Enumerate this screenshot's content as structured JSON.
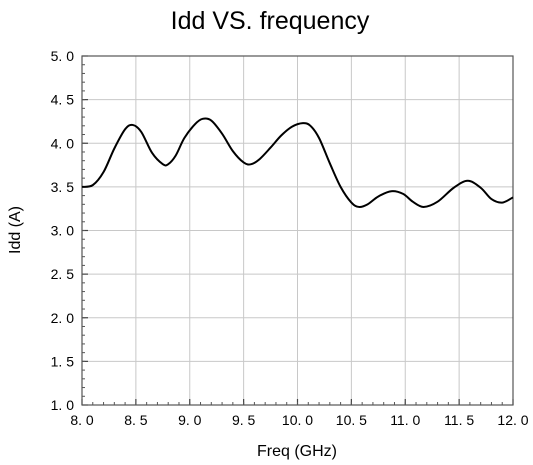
{
  "chart_data": {
    "type": "line",
    "title": "Idd VS.   frequency",
    "xlabel": "Freq (GHz)",
    "ylabel": "Idd (A)",
    "xlim": [
      8.0,
      12.0
    ],
    "ylim": [
      1.0,
      5.0
    ],
    "grid": true,
    "x_ticks": [
      8.0,
      8.5,
      9.0,
      9.5,
      10.0,
      10.5,
      11.0,
      11.5,
      12.0
    ],
    "x_tick_labels": [
      "8. 0",
      "8. 5",
      "9. 0",
      "9. 5",
      "10. 0",
      "10. 5",
      "11. 0",
      "11. 5",
      "12. 0"
    ],
    "y_ticks": [
      1.0,
      1.5,
      2.0,
      2.5,
      3.0,
      3.5,
      4.0,
      4.5,
      5.0
    ],
    "y_tick_labels": [
      "1. 0",
      "1. 5",
      "2. 0",
      "2. 5",
      "3. 0",
      "3. 5",
      "4. 0",
      "4. 5",
      "5. 0"
    ],
    "series": [
      {
        "x": [
          8.0,
          8.1,
          8.2,
          8.3,
          8.4,
          8.47,
          8.55,
          8.65,
          8.75,
          8.8,
          8.87,
          8.95,
          9.05,
          9.12,
          9.2,
          9.3,
          9.4,
          9.5,
          9.57,
          9.65,
          9.75,
          9.85,
          9.95,
          10.05,
          10.12,
          10.2,
          10.3,
          10.4,
          10.5,
          10.57,
          10.65,
          10.75,
          10.87,
          10.98,
          11.07,
          11.17,
          11.3,
          11.45,
          11.58,
          11.7,
          11.8,
          11.9,
          12.0
        ],
        "y": [
          3.5,
          3.52,
          3.67,
          3.94,
          4.16,
          4.21,
          4.13,
          3.89,
          3.76,
          3.76,
          3.86,
          4.06,
          4.22,
          4.28,
          4.26,
          4.11,
          3.91,
          3.78,
          3.76,
          3.82,
          3.95,
          4.09,
          4.19,
          4.23,
          4.2,
          4.06,
          3.77,
          3.5,
          3.32,
          3.27,
          3.3,
          3.39,
          3.45,
          3.42,
          3.33,
          3.27,
          3.33,
          3.49,
          3.57,
          3.49,
          3.36,
          3.32,
          3.38
        ]
      }
    ]
  }
}
